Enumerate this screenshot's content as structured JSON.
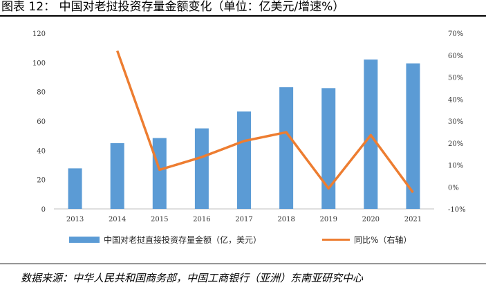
{
  "figure_title": "图表 12：  中国对老挝投资存量金额变化（单位：亿美元/增速%）",
  "source_note": "数据来源：中华人民共和国商务部，中国工商银行（亚洲）东南亚研究中心",
  "chart_data": {
    "type": "bar",
    "categories": [
      "2013",
      "2014",
      "2015",
      "2016",
      "2017",
      "2018",
      "2019",
      "2020",
      "2021"
    ],
    "series": [
      {
        "name": "中国对老挝直接投资存量金额（亿，美元）",
        "type": "bar",
        "axis": "left",
        "color": "#5b9bd5",
        "values": [
          27.7,
          44.9,
          48.4,
          55.0,
          66.5,
          83.1,
          82.5,
          102.0,
          99.4
        ]
      },
      {
        "name": "同比%（右轴）",
        "type": "line",
        "axis": "right",
        "color": "#ed7d31",
        "values": [
          null,
          62.0,
          7.8,
          13.6,
          20.9,
          24.9,
          -0.7,
          23.6,
          -2.5
        ]
      }
    ],
    "y_left": {
      "min": 0,
      "max": 120,
      "ticks": [
        "0",
        "20",
        "40",
        "60",
        "80",
        "100",
        "120"
      ]
    },
    "y_right": {
      "min": -10,
      "max": 70,
      "ticks": [
        "-10%",
        "0%",
        "10%",
        "20%",
        "30%",
        "40%",
        "50%",
        "60%",
        "70%"
      ]
    },
    "grid": false,
    "legend_position": "bottom"
  }
}
